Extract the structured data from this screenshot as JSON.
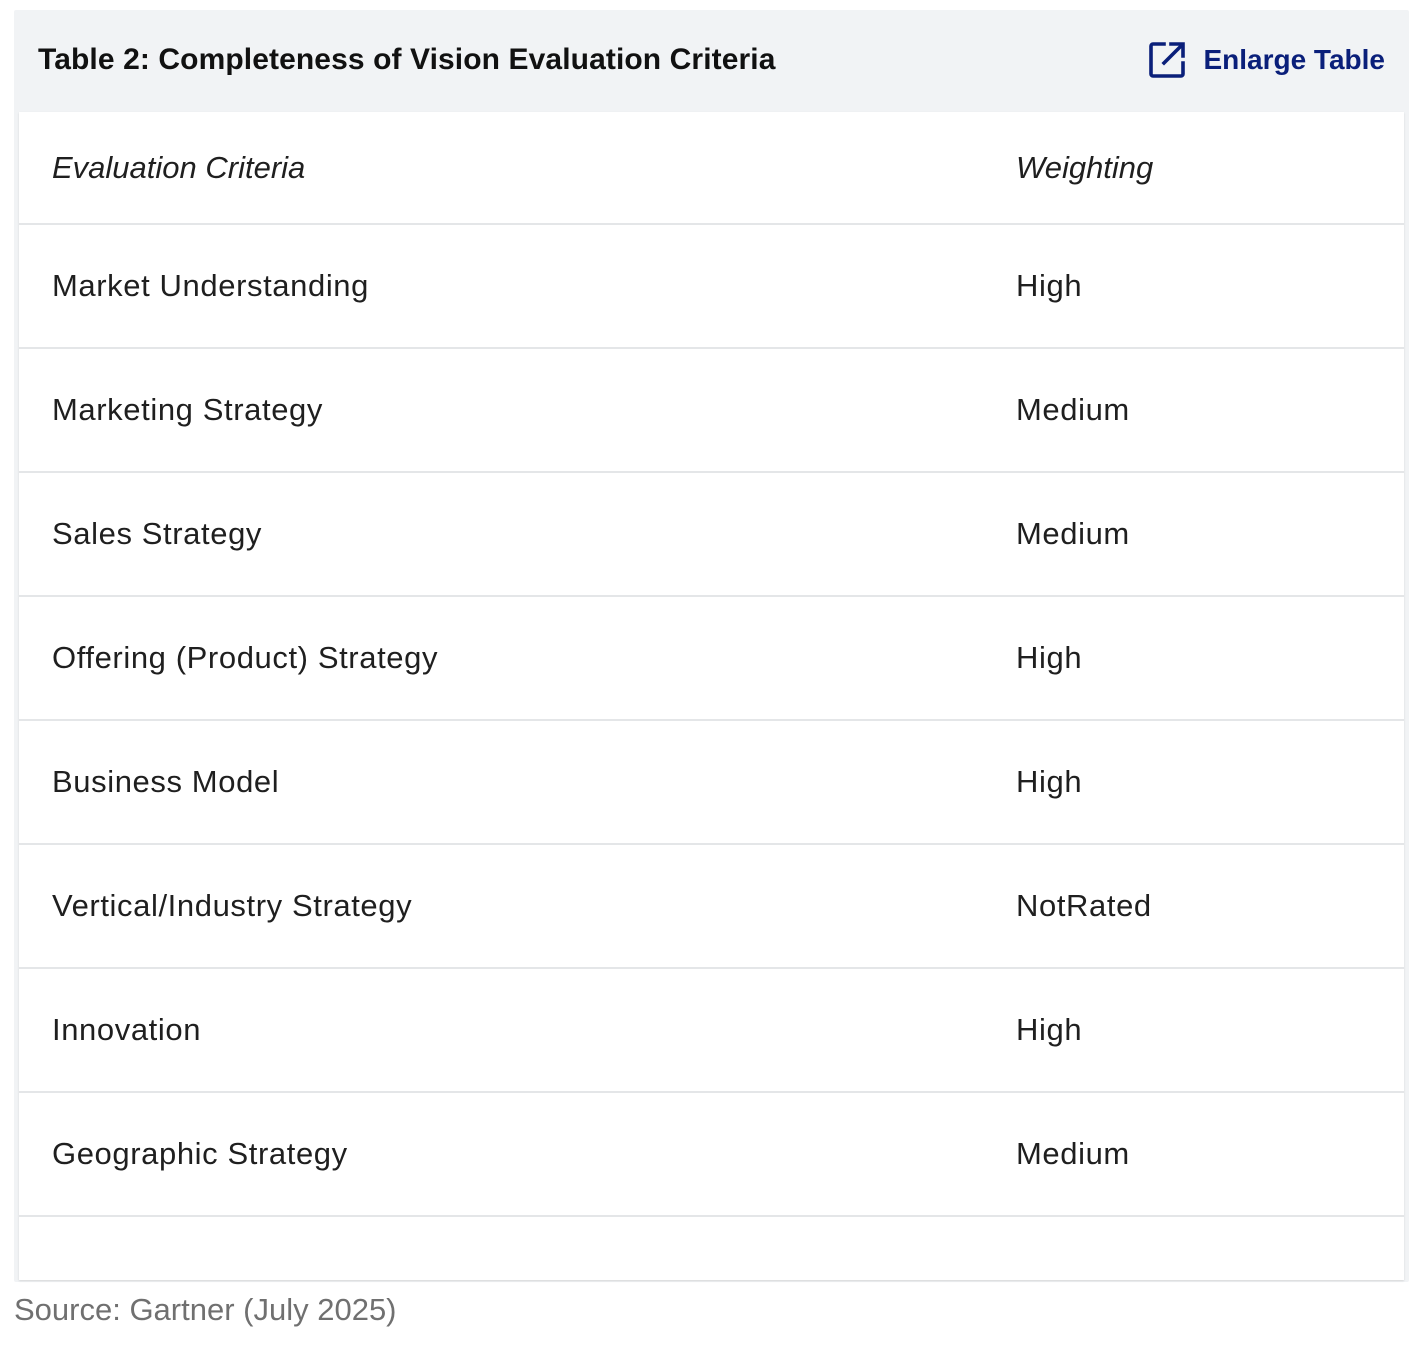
{
  "header": {
    "title": "Table 2: Completeness of Vision Evaluation Criteria",
    "enlarge_label": "Enlarge Table",
    "enlarge_icon": "external-link-icon",
    "accent_color": "#0a1f7a"
  },
  "table": {
    "columns": [
      "Evaluation Criteria",
      "Weighting"
    ],
    "rows": [
      {
        "criteria": "Market Understanding",
        "weighting": "High"
      },
      {
        "criteria": "Marketing Strategy",
        "weighting": "Medium"
      },
      {
        "criteria": "Sales Strategy",
        "weighting": "Medium"
      },
      {
        "criteria": "Offering (Product) Strategy",
        "weighting": "High"
      },
      {
        "criteria": "Business Model",
        "weighting": "High"
      },
      {
        "criteria": "Vertical/Industry Strategy",
        "weighting": "NotRated"
      },
      {
        "criteria": "Innovation",
        "weighting": "High"
      },
      {
        "criteria": "Geographic Strategy",
        "weighting": "Medium"
      }
    ]
  },
  "footer": {
    "source": "Source: Gartner (July 2025)"
  }
}
